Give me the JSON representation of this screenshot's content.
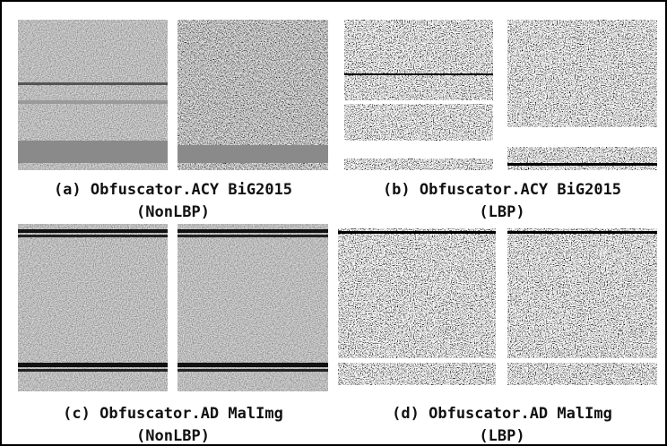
{
  "panels": [
    {
      "caption_line1": "(a) Obfuscator.ACY BiG2015",
      "caption_line2": "(NonLBP)"
    },
    {
      "caption_line1": "(b) Obfuscator.ACY BiG2015",
      "caption_line2": "(LBP)"
    },
    {
      "caption_line1": "(c) Obfuscator.AD MalImg",
      "caption_line2": "(NonLBP)"
    },
    {
      "caption_line1": "(d) Obfuscator.AD MalImg",
      "caption_line2": "(LBP)"
    }
  ]
}
